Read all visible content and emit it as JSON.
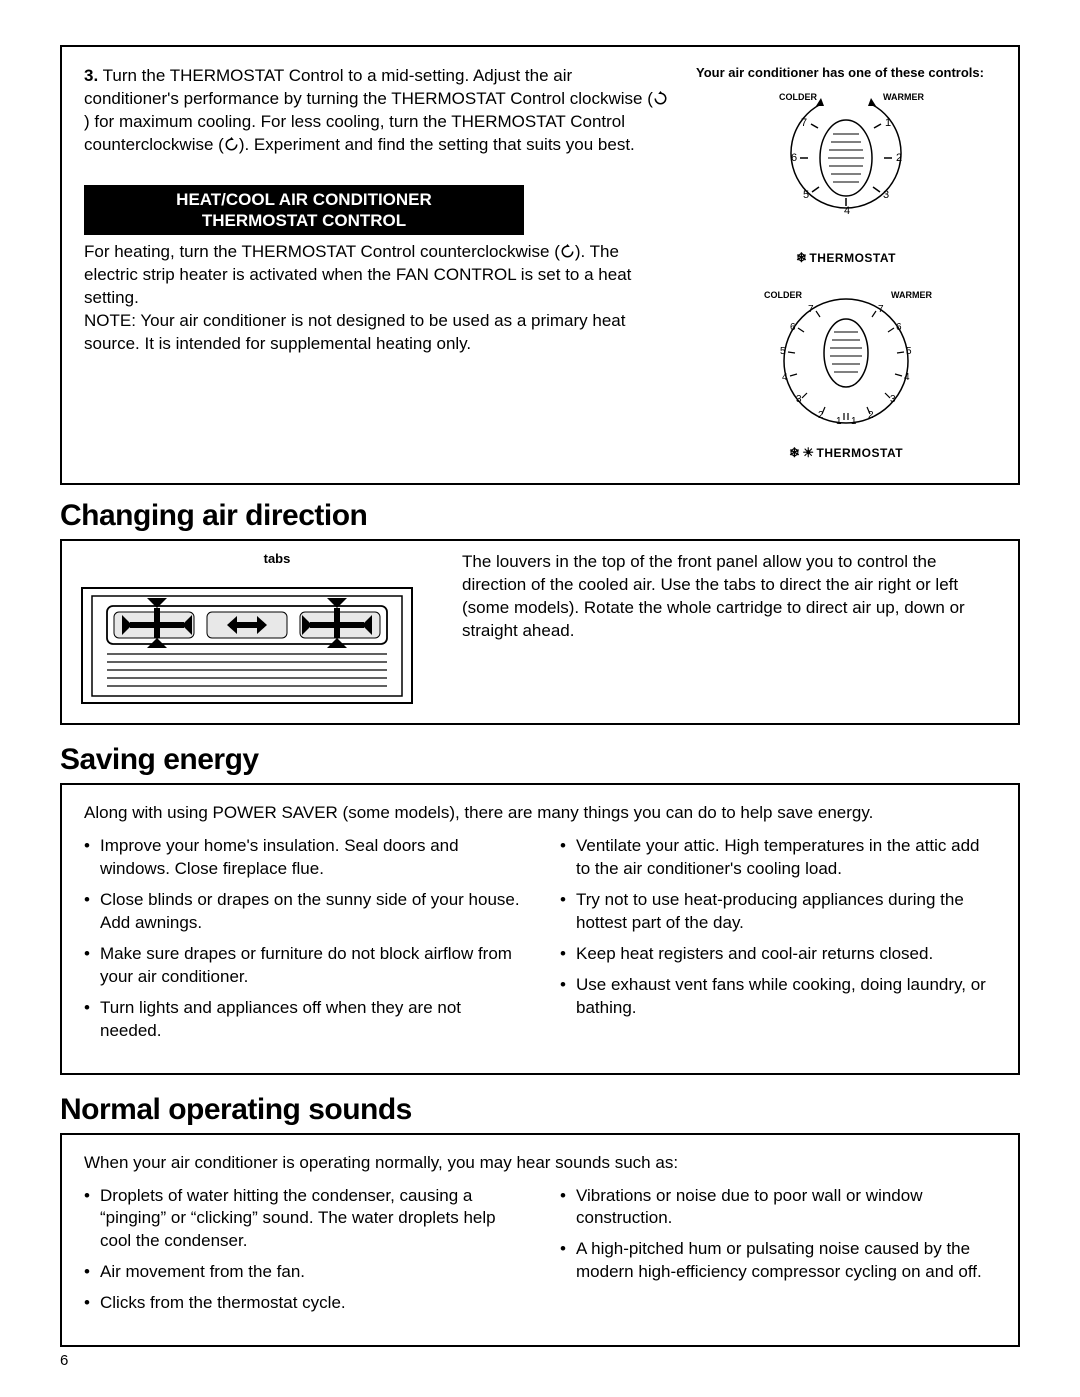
{
  "page_number": "6",
  "box1": {
    "step_number": "3.",
    "step_text_1": "Turn the THERMOSTAT Control to a mid-setting. Adjust the air conditioner's performance by turning the THERMOSTAT Control clockwise (",
    "step_text_2": ") for maximum cooling. For less cooling, turn the THERMOSTAT Control counterclockwise (",
    "step_text_3": "). Experiment and find the setting that suits you best.",
    "controls_caption": "Your air conditioner has one of these controls:",
    "banner_line1": "HEAT/COOL AIR CONDITIONER",
    "banner_line2": "THERMOSTAT CONTROL",
    "heat_text_1": "For heating, turn the THERMOSTAT Control counterclockwise (",
    "heat_text_2": "). The electric strip heater is activated when the FAN CONTROL is set to a heat setting.",
    "heat_note": "NOTE: Your air conditioner is not designed to be used as a primary heat source.  It is intended for supplemental heating only.",
    "dial1": {
      "left_label": "COLDER",
      "right_label": "WARMER",
      "numbers": [
        "1",
        "2",
        "3",
        "4",
        "5",
        "6",
        "7"
      ],
      "caption": "THERMOSTAT"
    },
    "dial2": {
      "left_label": "COLDER",
      "right_label": "WARMER",
      "numbers_left": [
        "7",
        "6",
        "5",
        "4",
        "3",
        "2",
        "1"
      ],
      "numbers_right": [
        "7",
        "6",
        "5",
        "4",
        "3",
        "2",
        "1"
      ],
      "caption": "THERMOSTAT"
    }
  },
  "section2": {
    "title": "Changing air direction",
    "tabs_label": "tabs",
    "text": "The louvers in the top of the front panel allow you to control the direction of the cooled air. Use the tabs to direct the air right or left (some models). Rotate the whole cartridge to direct air up, down or straight ahead."
  },
  "section3": {
    "title": "Saving energy",
    "intro": "Along with using POWER SAVER (some models), there are many things you can do to help save energy.",
    "left_bullets": [
      "Improve your home's insulation. Seal doors and windows. Close fireplace flue.",
      "Close blinds or drapes on the sunny side of your house. Add awnings.",
      "Make sure drapes or furniture do not block airflow from your air conditioner.",
      "Turn lights and appliances off when they are not needed."
    ],
    "right_bullets": [
      "Ventilate your attic. High temperatures in the attic add to the air conditioner's cooling load.",
      "Try not to use heat-producing appliances during the hottest part of the day.",
      "Keep heat registers and cool-air returns closed.",
      "Use exhaust vent fans while cooking, doing laundry, or bathing."
    ]
  },
  "section4": {
    "title": "Normal operating sounds",
    "intro": "When your air conditioner is operating normally, you may hear sounds such as:",
    "left_bullets": [
      "Droplets of water hitting the condenser, causing a “pinging” or “clicking” sound. The water droplets help cool the condenser.",
      "Air movement from the fan.",
      "Clicks from the thermostat cycle."
    ],
    "right_bullets": [
      "Vibrations or noise due to poor wall or window construction.",
      "A high-pitched hum or pulsating noise caused by the modern high-efficiency compressor cycling on and off."
    ]
  }
}
